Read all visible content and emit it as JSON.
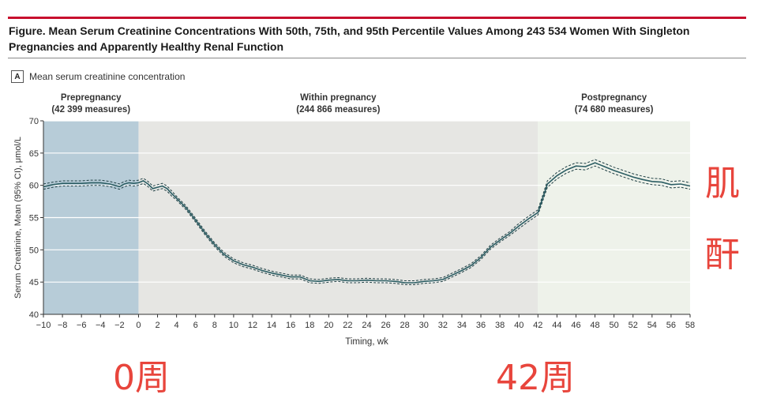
{
  "figure": {
    "title": "Figure. Mean Serum Creatinine Concentrations With 50th, 75th, and 95th Percentile Values Among 243 534 Women With Singleton Pregnancies and Apparently Healthy Renal Function",
    "panel_letter": "A",
    "panel_title": "Mean serum creatinine concentration"
  },
  "annotations": {
    "right_chars": [
      "肌",
      "酐"
    ],
    "week0": "0周",
    "week42": "42周",
    "colors": {
      "annotation": "#e8453c",
      "title_rule": "#c8102e"
    }
  },
  "chart_data": {
    "type": "line",
    "title": "",
    "xlabel": "Timing, wk",
    "ylabel": "Serum Creatinine, Mean (95% CI), μmol/L",
    "xlim": [
      -10,
      58
    ],
    "ylim": [
      40,
      70
    ],
    "x_ticks": [
      -10,
      -8,
      -6,
      -4,
      -2,
      0,
      2,
      4,
      6,
      8,
      10,
      12,
      14,
      16,
      18,
      20,
      22,
      24,
      26,
      28,
      30,
      32,
      34,
      36,
      38,
      40,
      42,
      44,
      46,
      48,
      50,
      52,
      54,
      56,
      58
    ],
    "y_ticks": [
      40,
      45,
      50,
      55,
      60,
      65,
      70
    ],
    "grid": "horizontal",
    "phases": [
      {
        "label": "Prepregnancy",
        "measures": "(42 399 measures)",
        "from": -10,
        "to": 0,
        "color": "#b7ccd8"
      },
      {
        "label": "Within pregnancy",
        "measures": "(244 866 measures)",
        "from": 0,
        "to": 42,
        "color": "#e6e6e3"
      },
      {
        "label": "Postpregnancy",
        "measures": "(74 680 measures)",
        "from": 42,
        "to": 58,
        "color": "#eef2ea"
      }
    ],
    "series": [
      {
        "line_color": "#2b5d63",
        "ci_color": "#1f3f44",
        "x": [
          -10,
          -9,
          -8,
          -7,
          -6,
          -5,
          -4,
          -3,
          -2,
          -1.5,
          -1,
          -0.5,
          0,
          0.5,
          1,
          1.5,
          2,
          2.5,
          3,
          3.5,
          4,
          5,
          6,
          7,
          8,
          9,
          10,
          11,
          12,
          13,
          14,
          15,
          16,
          17,
          18,
          19,
          20,
          21,
          22,
          23,
          24,
          25,
          26,
          27,
          28,
          29,
          30,
          31,
          32,
          33,
          34,
          35,
          36,
          37,
          38,
          39,
          40,
          41,
          42,
          43,
          44,
          45,
          46,
          47,
          48,
          49,
          50,
          51,
          52,
          53,
          54,
          55,
          56,
          57,
          58
        ],
        "y": [
          59.8,
          60.1,
          60.3,
          60.3,
          60.3,
          60.4,
          60.4,
          60.2,
          59.8,
          60.2,
          60.4,
          60.3,
          60.4,
          60.7,
          60.2,
          59.5,
          59.7,
          59.9,
          59.5,
          58.7,
          58.0,
          56.5,
          54.6,
          52.6,
          50.8,
          49.3,
          48.3,
          47.7,
          47.3,
          46.8,
          46.4,
          46.1,
          45.8,
          45.8,
          45.2,
          45.1,
          45.3,
          45.4,
          45.2,
          45.2,
          45.3,
          45.2,
          45.2,
          45.1,
          44.9,
          44.9,
          45.1,
          45.2,
          45.4,
          46.1,
          46.8,
          47.6,
          48.8,
          50.4,
          51.5,
          52.5,
          53.7,
          54.8,
          55.8,
          60.2,
          61.5,
          62.4,
          63.0,
          62.9,
          63.5,
          62.9,
          62.3,
          61.8,
          61.3,
          60.9,
          60.6,
          60.5,
          60.1,
          60.2,
          59.9
        ],
        "ci_halfwidth": [
          0.4,
          0.4,
          0.4,
          0.4,
          0.4,
          0.4,
          0.4,
          0.4,
          0.4,
          0.4,
          0.4,
          0.4,
          0.4,
          0.4,
          0.4,
          0.4,
          0.4,
          0.4,
          0.4,
          0.4,
          0.3,
          0.3,
          0.3,
          0.3,
          0.3,
          0.3,
          0.3,
          0.3,
          0.3,
          0.3,
          0.3,
          0.3,
          0.3,
          0.3,
          0.3,
          0.3,
          0.3,
          0.3,
          0.3,
          0.3,
          0.3,
          0.3,
          0.3,
          0.3,
          0.3,
          0.3,
          0.3,
          0.3,
          0.3,
          0.3,
          0.3,
          0.3,
          0.3,
          0.3,
          0.3,
          0.3,
          0.4,
          0.4,
          0.4,
          0.5,
          0.5,
          0.5,
          0.5,
          0.5,
          0.5,
          0.5,
          0.5,
          0.5,
          0.5,
          0.5,
          0.5,
          0.5,
          0.5,
          0.5,
          0.5
        ]
      }
    ]
  }
}
